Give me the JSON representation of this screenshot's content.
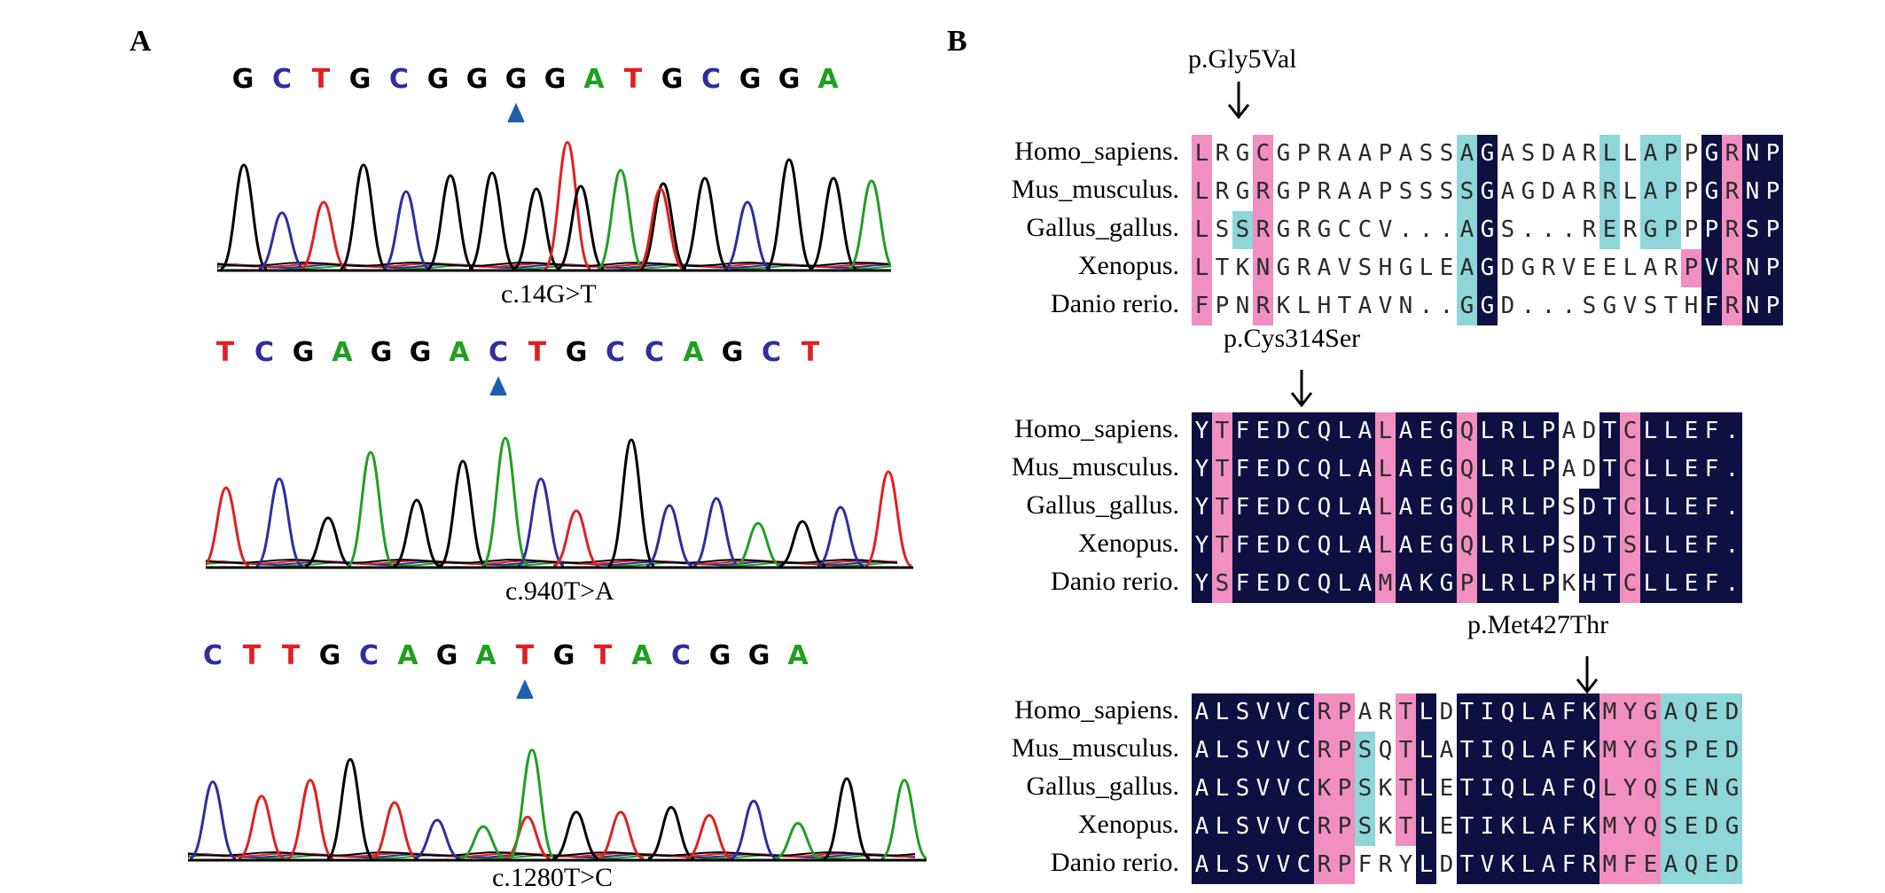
{
  "panel_a": {
    "label": "A",
    "traces": [
      {
        "bases": "GCTGCGGGGATGCGGA",
        "variant_label": "c.14G>T",
        "marker_index": 7,
        "box_left": 245,
        "box_right": 1005,
        "seq_left": 252,
        "seq_top": 72,
        "trace_top": 155,
        "trace_bottom": 305,
        "label_top": 315,
        "label_x": 565,
        "peaks": [
          {
            "c": "#000000",
            "x": 275,
            "h": 0.78
          },
          {
            "c": "#2e2e9e",
            "x": 318,
            "h": 0.42
          },
          {
            "c": "#e02020",
            "x": 365,
            "h": 0.5
          },
          {
            "c": "#000000",
            "x": 410,
            "h": 0.78
          },
          {
            "c": "#2e2e9e",
            "x": 458,
            "h": 0.58
          },
          {
            "c": "#000000",
            "x": 508,
            "h": 0.7
          },
          {
            "c": "#000000",
            "x": 555,
            "h": 0.72
          },
          {
            "c": "#000000",
            "x": 605,
            "h": 0.6
          },
          {
            "c": "#e02020",
            "x": 640,
            "h": 0.95
          },
          {
            "c": "#000000",
            "x": 655,
            "h": 0.62
          },
          {
            "c": "#20a020",
            "x": 700,
            "h": 0.74
          },
          {
            "c": "#000000",
            "x": 748,
            "h": 0.64
          },
          {
            "c": "#e02020",
            "x": 745,
            "h": 0.6
          },
          {
            "c": "#000000",
            "x": 795,
            "h": 0.68
          },
          {
            "c": "#2e2e9e",
            "x": 843,
            "h": 0.5
          },
          {
            "c": "#000000",
            "x": 890,
            "h": 0.82
          },
          {
            "c": "#000000",
            "x": 940,
            "h": 0.68
          },
          {
            "c": "#20a020",
            "x": 983,
            "h": 0.66
          }
        ]
      },
      {
        "bases": "TCGAGGACTGCCAGCT",
        "variant_label": "c.940T>A",
        "marker_index": 7,
        "box_left": 232,
        "box_right": 1030,
        "seq_left": 232,
        "seq_top": 380,
        "trace_top": 440,
        "trace_bottom": 640,
        "label_top": 650,
        "label_x": 570,
        "peaks": [
          {
            "c": "#e02020",
            "x": 255,
            "h": 0.44
          },
          {
            "c": "#2e2e9e",
            "x": 315,
            "h": 0.49
          },
          {
            "c": "#000000",
            "x": 370,
            "h": 0.27
          },
          {
            "c": "#20a020",
            "x": 418,
            "h": 0.64
          },
          {
            "c": "#000000",
            "x": 470,
            "h": 0.37
          },
          {
            "c": "#000000",
            "x": 522,
            "h": 0.59
          },
          {
            "c": "#20a020",
            "x": 570,
            "h": 0.72
          },
          {
            "c": "#2e2e9e",
            "x": 610,
            "h": 0.49
          },
          {
            "c": "#e02020",
            "x": 650,
            "h": 0.31
          },
          {
            "c": "#000000",
            "x": 712,
            "h": 0.71
          },
          {
            "c": "#2e2e9e",
            "x": 755,
            "h": 0.34
          },
          {
            "c": "#2e2e9e",
            "x": 808,
            "h": 0.38
          },
          {
            "c": "#20a020",
            "x": 855,
            "h": 0.24
          },
          {
            "c": "#000000",
            "x": 905,
            "h": 0.25
          },
          {
            "c": "#2e2e9e",
            "x": 948,
            "h": 0.33
          },
          {
            "c": "#e02020",
            "x": 1002,
            "h": 0.53
          }
        ]
      },
      {
        "bases": "CTTGCAGATGTACGGA",
        "variant_label": "c.1280T>C",
        "marker_index": 8,
        "box_left": 212,
        "box_right": 1045,
        "seq_left": 218,
        "seq_top": 722,
        "trace_top": 790,
        "trace_bottom": 970,
        "label_top": 973,
        "label_x": 555,
        "peaks": [
          {
            "c": "#2e2e9e",
            "x": 240,
            "h": 0.48
          },
          {
            "c": "#e02020",
            "x": 295,
            "h": 0.39
          },
          {
            "c": "#e02020",
            "x": 350,
            "h": 0.49
          },
          {
            "c": "#000000",
            "x": 395,
            "h": 0.62
          },
          {
            "c": "#e02020",
            "x": 445,
            "h": 0.35
          },
          {
            "c": "#2e2e9e",
            "x": 493,
            "h": 0.24
          },
          {
            "c": "#20a020",
            "x": 545,
            "h": 0.2
          },
          {
            "c": "#e02020",
            "x": 595,
            "h": 0.26
          },
          {
            "c": "#20a020",
            "x": 600,
            "h": 0.68
          },
          {
            "c": "#000000",
            "x": 650,
            "h": 0.29
          },
          {
            "c": "#e02020",
            "x": 700,
            "h": 0.29
          },
          {
            "c": "#000000",
            "x": 757,
            "h": 0.32
          },
          {
            "c": "#e02020",
            "x": 800,
            "h": 0.27
          },
          {
            "c": "#2e2e9e",
            "x": 850,
            "h": 0.36
          },
          {
            "c": "#20a020",
            "x": 900,
            "h": 0.22
          },
          {
            "c": "#000000",
            "x": 955,
            "h": 0.5
          },
          {
            "c": "#20a020",
            "x": 1020,
            "h": 0.49
          }
        ]
      }
    ]
  },
  "panel_b": {
    "label": "B",
    "species": [
      "Homo_sapiens.",
      "Mus_musculus.",
      "Gallus_gallus.",
      "Xenopus.",
      "Danio rerio."
    ],
    "blocks": [
      {
        "mutation": "p.Gly5Val",
        "mut_x": 1340,
        "mut_top": 50,
        "arrow_x": 1397,
        "arrow_top": 90,
        "top": 152,
        "left": 1344,
        "rows": [
          "LRGCGPRAAPASSAGASDARLLAPPGRNP",
          "LRGRGPRAAPSSSSGAGDARRLAPPGRNP",
          "LSSRGRGCCV...AGS...RERGPPPRSP",
          "LTKNGRAVSHGLEAGDGRVEELARPVRNP",
          "FPNRKLHTAVN..GGD...SGVSTHFRNP"
        ],
        "shades": [
          "pwwpwwwwwwwwwcnwwwwwcwccwnpnn",
          "pwwpwwwwwwwwwcnwwwwwcwccwnpnn",
          "pwcpwwwwwwwwwcnwwwwwcwccwnpnn",
          "pwwpwwwwwwwwwcnwwwwwwwwwpnpnn",
          "pwwpwwwwwwwwwcnwwwwwwwwwwnpnn"
        ]
      },
      {
        "mutation": "p.Cys314Ser",
        "mut_x": 1380,
        "mut_top": 365,
        "arrow_x": 1468,
        "arrow_top": 415,
        "top": 465,
        "left": 1344,
        "rows": [
          "YTFEDCQLALAEGQLRLPADTCLLEF.",
          "YTFEDCQLALAEGQLRLPADTCLLEF.",
          "YTFEDCQLALAEGQLRLPSDTCLLEF.",
          "YTFEDCQLALAEGQLRLPSDTSLLEF.",
          "YSFEDCQLAMAKGPLRLPKHTCLLEF."
        ],
        "shades": [
          "npnnnnnnnpnnnpnnnnwwnpnnnnn",
          "npnnnnnnnpnnnpnnnnwwnpnnnnn",
          "npnnnnnnnpnnnpnnnnwnnpnnnnn",
          "npnnnnnnnpnnnpnnnnwnnpnnnnn",
          "npnnnnnnnpnnnpnnnnwnnpnnnnn"
        ]
      },
      {
        "mutation": "p.Met427Thr",
        "mut_x": 1655,
        "mut_top": 688,
        "arrow_x": 1790,
        "arrow_top": 738,
        "top": 782,
        "left": 1344,
        "rows": [
          "ALSVVCRPARTLDTIQLAFKMYGAQED",
          "ALSVVCRPSQTLATIQLAFKMYGSPED",
          "ALSVVCKPSKTLETIQLAFQLYQSENG",
          "ALSVVCRPSKTLETIKLAFKMYQSEDG",
          "ALSVVCRPFRYLDTVKLAFRMFEAQED"
        ],
        "shades": [
          "nnnnnnppwwpnwnnnnnnnpppcccc",
          "nnnnnnppcwpnwnnnnnnnpppcccc",
          "nnnnnnppcwpnwnnnnnnnpppcccc",
          "nnnnnnppcwpnwnnnnnnnpppcccc",
          "nnnnnnppwwwnwnnnnnnnpppcccc"
        ]
      }
    ],
    "shade_colors": {
      "n": "#0d1040",
      "p": "#f08fc0",
      "c": "#8ed6da",
      "w": "#ffffff"
    }
  },
  "base_colors": {
    "A": "#20a020",
    "C": "#2e2e9e",
    "G": "#000000",
    "T": "#e02020"
  },
  "marker_color": "#1f5fb0"
}
